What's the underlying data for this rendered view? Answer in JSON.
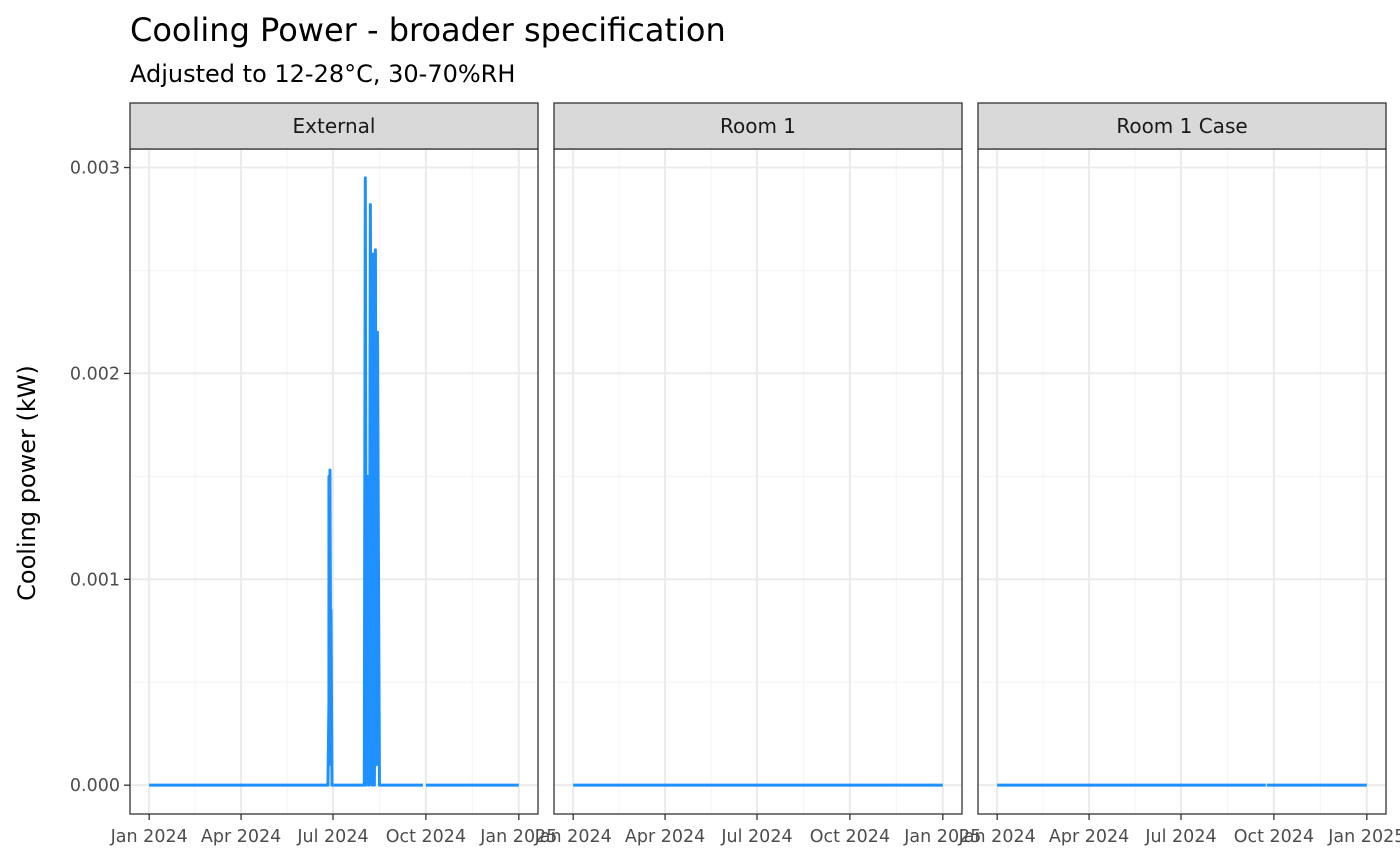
{
  "colors": {
    "line": "#1e90ff",
    "strip_fill": "#d9d9d9",
    "panel_border": "#333333",
    "grid_major": "#ebebeb",
    "grid_minor": "#f5f5f5"
  },
  "chart_data": {
    "type": "line",
    "title": "Cooling Power - broader specification",
    "subtitle": "Adjusted to 12-28°C, 30-70%RH",
    "xlabel": "",
    "ylabel": "Cooling power (kW)",
    "ylim": [
      -0.00014,
      0.00309
    ],
    "xlim": [
      "2023-12-13",
      "2025-01-20"
    ],
    "yticks": [
      {
        "value": 0,
        "label": "0.000"
      },
      {
        "value": 0.001,
        "label": "0.001"
      },
      {
        "value": 0.002,
        "label": "0.002"
      },
      {
        "value": 0.003,
        "label": "0.003"
      }
    ],
    "xticks": [
      {
        "value": "2024-01-01",
        "label": "Jan 2024"
      },
      {
        "value": "2024-04-01",
        "label": "Apr 2024"
      },
      {
        "value": "2024-07-01",
        "label": "Jul 2024"
      },
      {
        "value": "2024-10-01",
        "label": "Oct 2024"
      },
      {
        "value": "2025-01-01",
        "label": "Jan 2025"
      }
    ],
    "grid": true,
    "legend": "none",
    "facets": [
      {
        "label": "External",
        "series": [
          {
            "x": [
              "2024-01-01",
              "2024-06-26",
              "2024-06-27",
              "2024-06-27",
              "2024-06-28",
              "2024-06-28",
              "2024-06-29",
              "2024-06-29",
              "2024-06-30",
              "2024-07-01",
              "2024-08-01",
              "2024-08-02",
              "2024-08-03",
              "2024-08-04",
              "2024-08-06",
              "2024-08-07",
              "2024-08-09",
              "2024-08-10",
              "2024-08-11",
              "2024-08-12",
              "2024-08-13",
              "2024-08-14",
              "2024-08-16",
              "2024-09-28"
            ],
            "y": [
              0,
              0,
              0.0004,
              0.0015,
              0.0002,
              0.00153,
              0.0001,
              0.00085,
              0,
              0,
              0,
              0.00295,
              0,
              0.0015,
              0,
              0.00282,
              0,
              0.00258,
              0,
              0.0026,
              0.0001,
              0.0022,
              0,
              0
            ]
          },
          {
            "x": [
              "2024-10-01",
              "2025-01-01"
            ],
            "y": [
              0,
              0
            ]
          }
        ]
      },
      {
        "label": "Room 1",
        "series": [
          {
            "x": [
              "2024-01-01",
              "2025-01-01"
            ],
            "y": [
              0,
              0
            ]
          }
        ]
      },
      {
        "label": "Room 1 Case",
        "series": [
          {
            "x": [
              "2024-01-01",
              "2024-09-23"
            ],
            "y": [
              0,
              0
            ]
          },
          {
            "x": [
              "2024-09-24",
              "2025-01-01"
            ],
            "y": [
              0,
              0
            ]
          }
        ]
      }
    ]
  }
}
